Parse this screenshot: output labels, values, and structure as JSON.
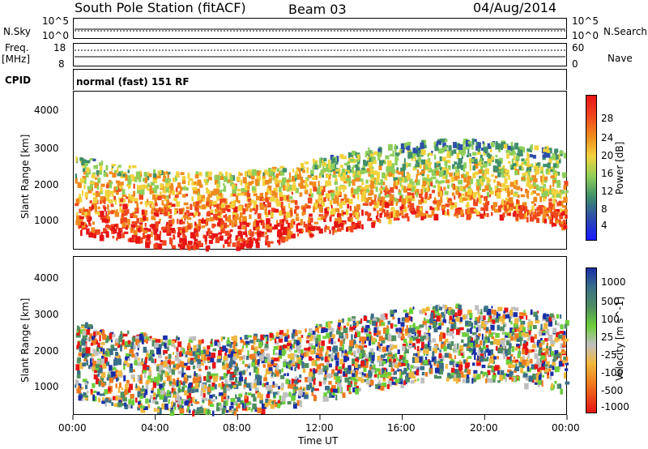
{
  "header": {
    "title": "South Pole Station (fitACF)",
    "beam": "Beam 03",
    "date": "04/Aug/2014"
  },
  "status": {
    "nsky_label": "N.Sky",
    "nsearch_label": "N.Search",
    "freq_label_1": "Freq.",
    "freq_label_2": "[MHz]",
    "nave_label": "Nave",
    "cpid_label": "CPID",
    "cpid_value": "normal (fast) 151 RF",
    "noise_ticks_left": [
      "10^5",
      "10^0"
    ],
    "noise_ticks_right": [
      "10^5",
      "10^0"
    ],
    "freq_ticks": [
      "18",
      "8"
    ],
    "nave_ticks": [
      "60",
      "0"
    ]
  },
  "chart_data": [
    {
      "type": "heatmap",
      "name": "power",
      "ylabel": "Slant Range [km]",
      "yticks": [
        "4000",
        "3000",
        "2000",
        "1000"
      ],
      "ylim": [
        200,
        4500
      ],
      "colorbar_label": "Power [dB]",
      "colorbar_ticks": [
        "28",
        "24",
        "20",
        "16",
        "12",
        "8",
        "4"
      ],
      "colors": [
        "#1a1aff",
        "#2e4fa8",
        "#3f8f6a",
        "#8fcf5a",
        "#f2d23c",
        "#f08a1e",
        "#f0461e",
        "#e61414"
      ]
    },
    {
      "type": "heatmap",
      "name": "velocity",
      "ylabel": "Slant Range [km]",
      "yticks": [
        "4000",
        "3000",
        "2000",
        "1000"
      ],
      "ylim": [
        200,
        4500
      ],
      "colorbar_label": "Velocity [m s^-1]",
      "colorbar_ticks": [
        "1000",
        "500",
        "100",
        "25",
        "-25",
        "-100",
        "-500",
        "-1000"
      ],
      "colors": [
        "#1a2ea8",
        "#3a6f8a",
        "#4f8f5f",
        "#6ccf3a",
        "#c0c0c0",
        "#f0b83c",
        "#f07a1e",
        "#e61414"
      ]
    }
  ],
  "xaxis": {
    "ticks": [
      "00:00",
      "04:00",
      "08:00",
      "12:00",
      "16:00",
      "20:00",
      "00:00"
    ],
    "label": "Time UT"
  }
}
